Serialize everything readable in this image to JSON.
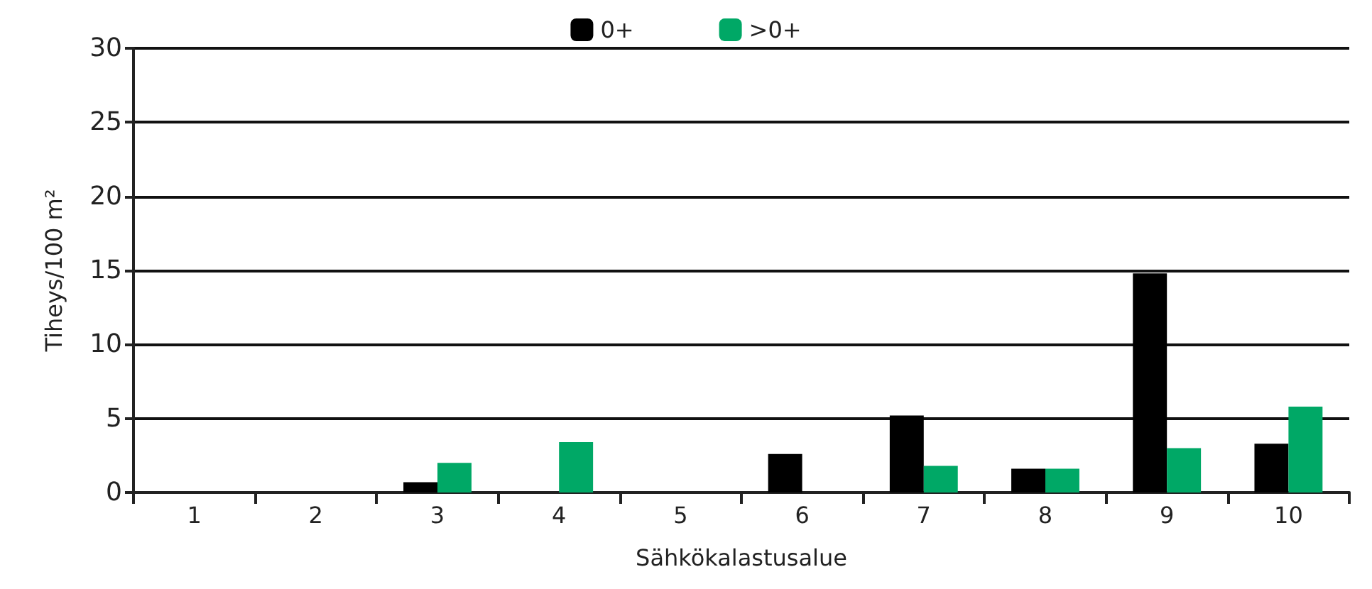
{
  "chart_data": {
    "type": "bar",
    "xlabel": "Sähkökalastusalue",
    "ylabel": "Tiheys/100 m²",
    "categories": [
      "1",
      "2",
      "3",
      "4",
      "5",
      "6",
      "7",
      "8",
      "9",
      "10"
    ],
    "series": [
      {
        "name": "0+",
        "color": "#000000",
        "values": [
          0,
          0,
          0.7,
          0,
          0,
          2.6,
          5.2,
          1.6,
          14.8,
          3.3
        ]
      },
      {
        "name": ">0+",
        "color": "#00a866",
        "values": [
          0,
          0,
          2.0,
          3.4,
          0,
          0,
          1.8,
          1.6,
          3.0,
          5.8
        ]
      }
    ],
    "ylim": [
      0,
      30
    ],
    "yticks": [
      0,
      5,
      10,
      15,
      20,
      25,
      30
    ],
    "grid": "y",
    "legend": "top"
  }
}
